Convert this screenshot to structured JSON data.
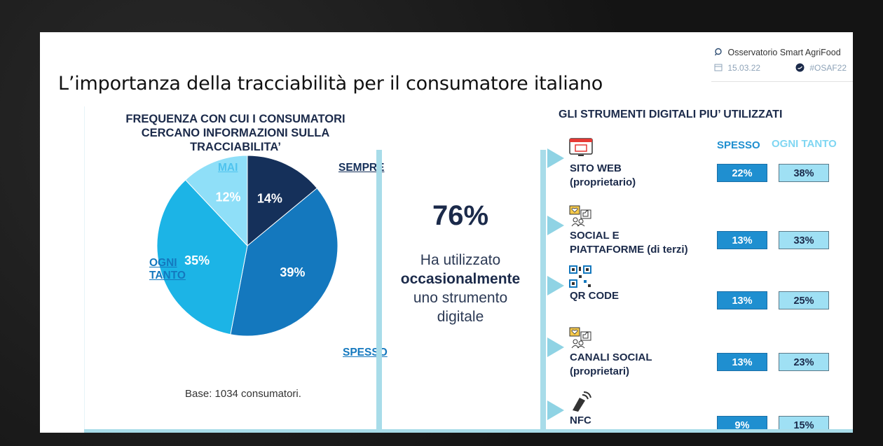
{
  "slide": {
    "title": "L’importanza della tracciabilità per il consumatore italiano",
    "header": {
      "org": "Osservatorio Smart AgriFood",
      "date": "15.03.22",
      "hashtag": "#OSAF22"
    }
  },
  "colors": {
    "sempre": "#15305a",
    "spesso": "#1478be",
    "ogni_tanto": "#1cb4e6",
    "mai": "#8fdff8",
    "accent_light": "#a8dce9"
  },
  "chart_data": [
    {
      "type": "pie",
      "title": "FREQUENZA CON CUI I CONSUMATORI CERCANO INFORMAZIONI SULLA TRACCIABILITA’",
      "title_lines": [
        "FREQUENZA CON CUI I CONSUMATORI",
        "CERCANO INFORMAZIONI SULLA TRACCIABILITA’"
      ],
      "slices": [
        {
          "label": "SEMPRE",
          "value": 14,
          "value_label": "14%",
          "color": "#15305a"
        },
        {
          "label": "SPESSO",
          "value": 39,
          "value_label": "39%",
          "color": "#1478be"
        },
        {
          "label": "OGNI TANTO",
          "value": 35,
          "value_label": "35%",
          "color": "#1cb4e6"
        },
        {
          "label": "MAI",
          "value": 12,
          "value_label": "12%",
          "color": "#8fdff8"
        }
      ],
      "label_lines": {
        "ogni_tanto": [
          "OGNI",
          "TANTO"
        ]
      },
      "note": "Base: 1034 consumatori."
    },
    {
      "type": "table",
      "title": "GLI STRUMENTI DIGITALI PIU’ UTILIZZATI",
      "columns": [
        "SPESSO",
        "OGNI TANTO"
      ],
      "rows": [
        {
          "lines": [
            "SITO WEB",
            "(proprietario)"
          ],
          "icon": "website-icon",
          "spesso": "22%",
          "ogni_tanto": "38%"
        },
        {
          "lines": [
            "SOCIAL E",
            "PIATTAFORME (di terzi)"
          ],
          "icon": "social-icon",
          "spesso": "13%",
          "ogni_tanto": "33%"
        },
        {
          "lines": [
            "QR CODE"
          ],
          "icon": "qr-code-icon",
          "spesso": "13%",
          "ogni_tanto": "25%"
        },
        {
          "lines": [
            "CANALI SOCIAL",
            "(proprietari)"
          ],
          "icon": "social-icon",
          "spesso": "13%",
          "ogni_tanto": "23%"
        },
        {
          "lines": [
            "NFC"
          ],
          "icon": "nfc-icon",
          "spesso": "9%",
          "ogni_tanto": "15%"
        }
      ]
    }
  ],
  "highlight": {
    "value": "76%",
    "line1": "Ha utilizzato",
    "line2": "occasionalmente",
    "line3": "uno strumento",
    "line4": "digitale"
  }
}
